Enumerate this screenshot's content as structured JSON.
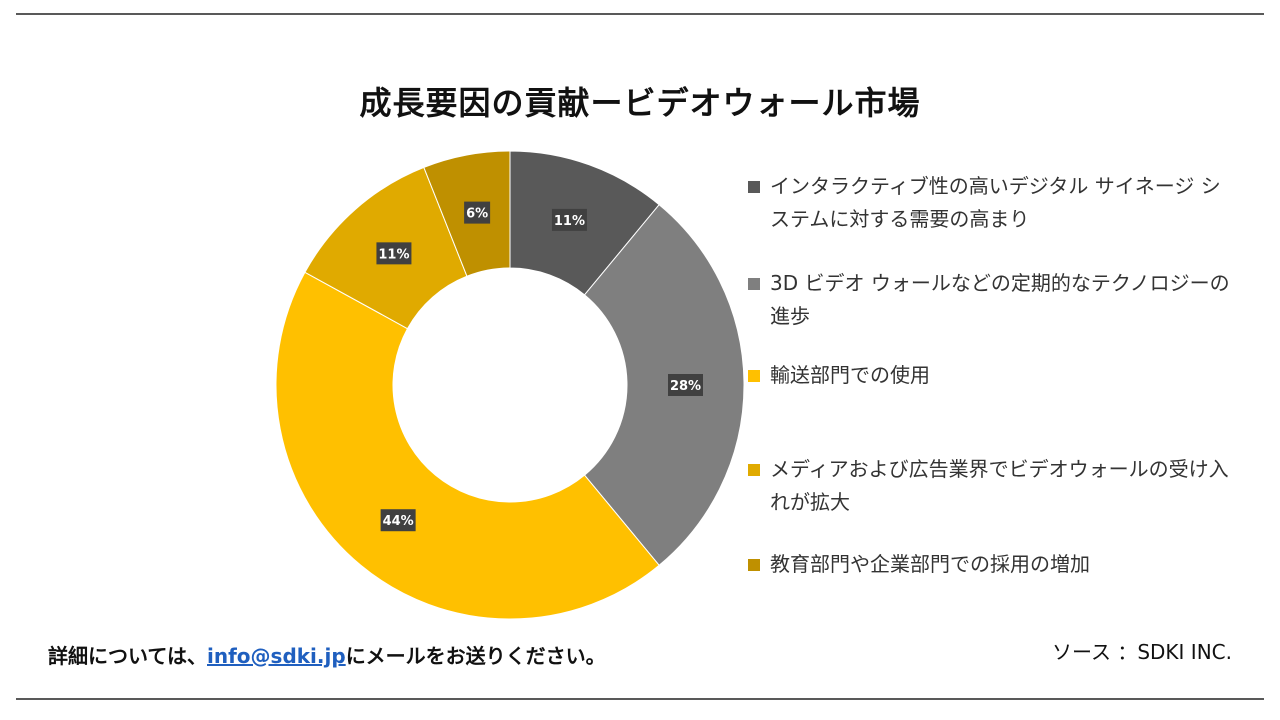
{
  "chart_data": {
    "type": "pie",
    "title": "成長要因の貢献ービデオウォール市場",
    "categories": [
      "インタラクティブ性の高いデジタル サイネージ システムに対する需要の高まり",
      "3D ビデオ ウォールなどの定期的なテクノロジーの進歩",
      "輸送部門での使用",
      "メディアおよび広告業界でビデオウォールの受け入れが拡大",
      "教育部門や企業部門での採用の増加"
    ],
    "values": [
      11,
      28,
      44,
      11,
      6
    ],
    "data_labels": [
      "11%",
      "28%",
      "44%",
      "11%",
      "6%"
    ],
    "colors": [
      "#595959",
      "#7f7f7f",
      "#ffc000",
      "#e0aa00",
      "#bf9000"
    ],
    "legend_position": "right"
  },
  "footer": {
    "prefix": "詳細については、",
    "email": "info@sdki.jp",
    "suffix": "にメールをお送りください。",
    "source": "ソース ：SDKI INC."
  }
}
